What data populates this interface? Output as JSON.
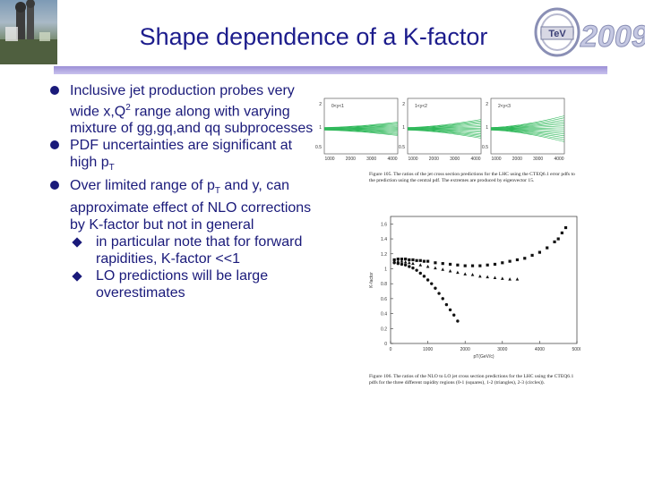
{
  "title": "Shape dependence of a K-factor",
  "logo": {
    "text": "2009",
    "icon": "tev-logo-icon"
  },
  "bullets": [
    {
      "main": "Inclusive jet production probes very wide x,Q",
      "sup": "2",
      "rest": " range along with varying mixture of gg,gq,and qq subprocesses"
    },
    {
      "main": "PDF uncertainties are significant at high p",
      "sub": "T",
      "rest": ""
    },
    {
      "main": "Over limited range of p",
      "sub": "T",
      "rest": " and y, can approximate effect of NLO corrections by K-factor but not in general"
    }
  ],
  "subbullets": [
    "in particular note that for forward rapidities, K-factor <<1",
    "LO predictions will be large overestimates"
  ],
  "fig105": {
    "panels": [
      "0<y<1",
      "1<y<2",
      "2<y<3"
    ],
    "xticks": [
      "1000",
      "2000",
      "3000",
      "4000"
    ],
    "yticks": [
      "2",
      "1",
      "0.5"
    ],
    "caption": "Figure 105. The ratios of the jet cross section predictions for the LHC using the CTEQ6.1 error pdfs to the prediction using the central pdf. The extremes are produced by eigenvector 15."
  },
  "fig106": {
    "caption": "Figure 106. The ratios of the NLO to LO jet cross section predictions for the LHC using the CTEQ6.1 pdfs for the three different rapidity regions (0-1 (squares), 1-2 (triangles), 2-3 (circles))."
  },
  "chart_data": {
    "type": "scatter",
    "xlabel": "pT(GeV/c)",
    "ylabel": "K-factor",
    "xlim": [
      0,
      5000
    ],
    "ylim": [
      0,
      1.7
    ],
    "yticks": [
      "0",
      "0.2",
      "0.4",
      "0.6",
      "0.8",
      "1",
      "1.2",
      "1.4",
      "1.6"
    ],
    "xticks": [
      "0",
      "1000",
      "2000",
      "3000",
      "4000",
      "5000"
    ],
    "series": [
      {
        "marker": "square",
        "x": [
          100,
          200,
          300,
          400,
          500,
          600,
          700,
          800,
          900,
          1000,
          1200,
          1400,
          1600,
          1800,
          2000,
          2200,
          2400,
          2600,
          2800,
          3000,
          3200,
          3400,
          3600,
          3800,
          4000,
          4200,
          4400,
          4500,
          4600,
          4700
        ],
        "y": [
          1.12,
          1.13,
          1.13,
          1.13,
          1.12,
          1.12,
          1.11,
          1.11,
          1.1,
          1.1,
          1.08,
          1.07,
          1.06,
          1.05,
          1.04,
          1.04,
          1.04,
          1.05,
          1.06,
          1.08,
          1.1,
          1.12,
          1.14,
          1.18,
          1.22,
          1.28,
          1.36,
          1.4,
          1.48,
          1.55
        ]
      },
      {
        "marker": "triangle",
        "x": [
          100,
          200,
          300,
          400,
          500,
          600,
          800,
          1000,
          1200,
          1400,
          1600,
          1800,
          2000,
          2200,
          2400,
          2600,
          2800,
          3000,
          3200,
          3400
        ],
        "y": [
          1.1,
          1.1,
          1.1,
          1.09,
          1.08,
          1.07,
          1.05,
          1.03,
          1.01,
          0.99,
          0.97,
          0.95,
          0.93,
          0.92,
          0.9,
          0.89,
          0.88,
          0.87,
          0.86,
          0.86
        ]
      },
      {
        "marker": "circle",
        "x": [
          100,
          200,
          300,
          400,
          500,
          600,
          700,
          800,
          900,
          1000,
          1100,
          1200,
          1300,
          1400,
          1500,
          1600,
          1700,
          1800
        ],
        "y": [
          1.08,
          1.07,
          1.06,
          1.05,
          1.03,
          1.01,
          0.98,
          0.94,
          0.9,
          0.85,
          0.8,
          0.74,
          0.67,
          0.6,
          0.52,
          0.45,
          0.38,
          0.3
        ]
      }
    ]
  }
}
